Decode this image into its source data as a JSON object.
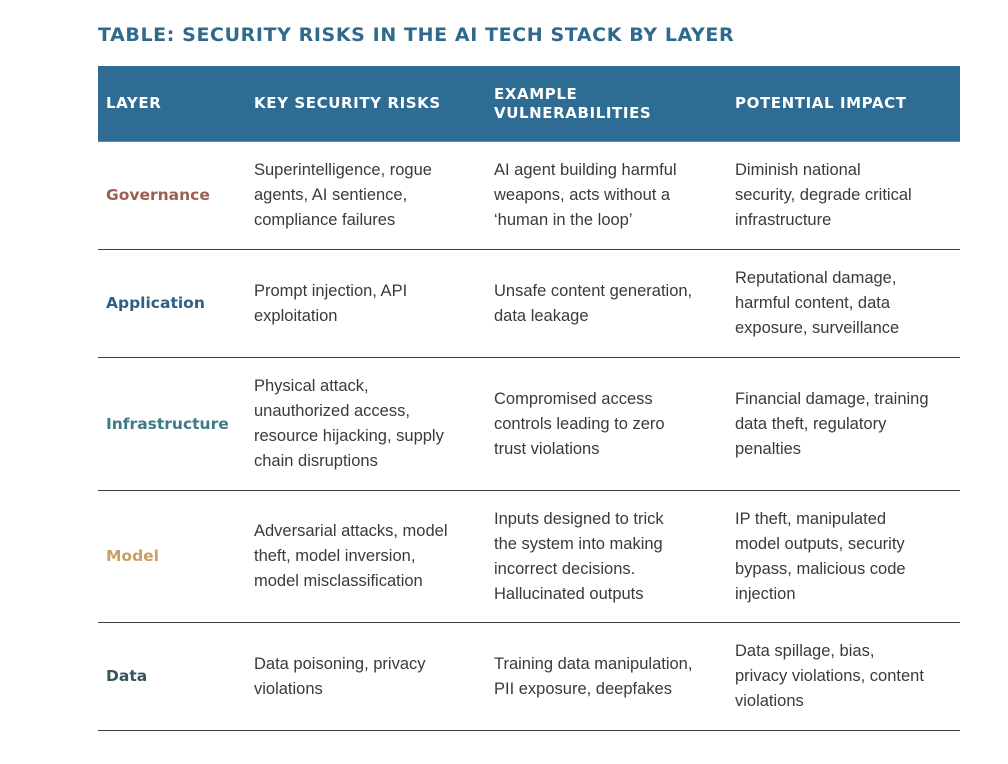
{
  "title": "TABLE: SECURITY RISKS IN THE AI TECH STACK BY LAYER",
  "headers": {
    "layer": "LAYER",
    "risks": "KEY SECURITY RISKS",
    "vulns": "EXAMPLE\nVULNERABILITIES",
    "impact": "POTENTIAL IMPACT"
  },
  "colors": {
    "header_bg": "#2e6c93",
    "governance": "#9b5f52",
    "application": "#2f5f82",
    "infrastructure": "#3f7a86",
    "model": "#c9a060",
    "data": "#34575c"
  },
  "rows": [
    {
      "layer": "Governance",
      "risks": "Superintelligence, rogue\nagents, AI sentience,\ncompliance failures",
      "vulns": "AI agent building harmful\nweapons, acts without a\n‘human in the loop’",
      "impact": "Diminish national\nsecurity, degrade critical\ninfrastructure"
    },
    {
      "layer": "Application",
      "risks": "Prompt injection, API\nexploitation",
      "vulns": "Unsafe content generation,\ndata leakage",
      "impact": "Reputational damage,\nharmful content, data\nexposure, surveillance"
    },
    {
      "layer": "Infrastructure",
      "risks": "Physical attack,\nunauthorized access,\nresource hijacking, supply\nchain disruptions",
      "vulns": "Compromised access\ncontrols leading to zero\ntrust violations",
      "impact": "Financial damage, training\ndata theft, regulatory\npenalties"
    },
    {
      "layer": "Model",
      "risks": "Adversarial attacks, model\ntheft, model inversion,\nmodel misclassification",
      "vulns": "Inputs designed to trick\nthe system into making\nincorrect decisions.\nHallucinated outputs",
      "impact": "IP theft, manipulated\nmodel outputs, security\nbypass, malicious code\ninjection"
    },
    {
      "layer": "Data",
      "risks": "Data poisoning, privacy\nviolations",
      "vulns": "Training data manipulation,\nPII exposure, deepfakes",
      "impact": "Data spillage, bias,\nprivacy violations, content\nviolations"
    }
  ]
}
